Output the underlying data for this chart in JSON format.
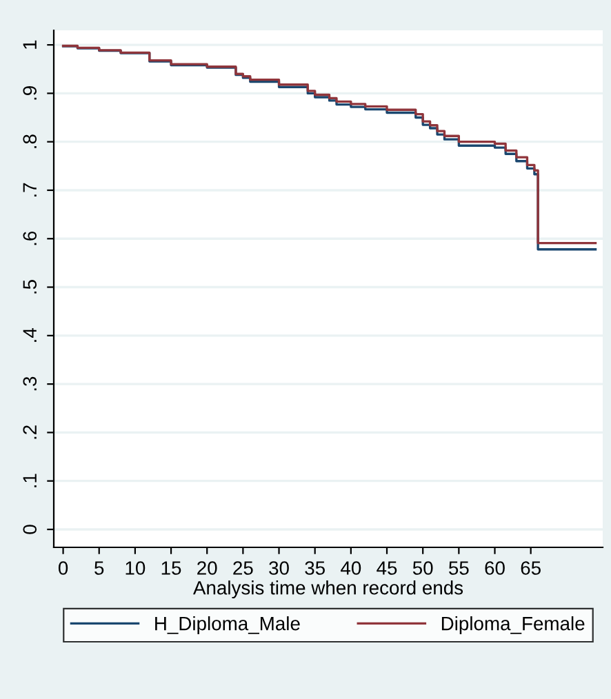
{
  "chart_data": {
    "type": "step",
    "xlabel": "Analysis time when record ends",
    "xlim": [
      -1.3,
      75
    ],
    "xticks": [
      0,
      5,
      10,
      15,
      20,
      25,
      30,
      35,
      40,
      45,
      50,
      55,
      60,
      65
    ],
    "ylim": [
      -0.037,
      1.03
    ],
    "yticks": [
      {
        "value": 0,
        "label": "0"
      },
      {
        "value": 0.1,
        "label": ".1"
      },
      {
        "value": 0.2,
        "label": ".2"
      },
      {
        "value": 0.3,
        "label": ".3"
      },
      {
        "value": 0.4,
        "label": ".4"
      },
      {
        "value": 0.5,
        "label": ".5"
      },
      {
        "value": 0.6,
        "label": ".6"
      },
      {
        "value": 0.7,
        "label": ".7"
      },
      {
        "value": 0.8,
        "label": ".8"
      },
      {
        "value": 0.9,
        "label": ".9"
      },
      {
        "value": 1,
        "label": "1"
      }
    ],
    "grid": "y",
    "legend": "bottom",
    "series": [
      {
        "name": "H_Diploma_Male",
        "color": "#1a476f",
        "x": [
          0,
          2,
          5,
          8,
          12,
          15,
          20,
          24,
          25,
          26,
          30,
          34,
          35,
          37,
          38,
          40,
          42,
          45,
          49,
          50,
          51,
          52,
          53,
          55,
          60,
          61.5,
          63,
          64.5,
          65.5,
          66,
          74
        ],
        "values": [
          0.997,
          0.993,
          0.988,
          0.983,
          0.966,
          0.958,
          0.953,
          0.938,
          0.932,
          0.924,
          0.913,
          0.9,
          0.892,
          0.885,
          0.877,
          0.872,
          0.867,
          0.86,
          0.85,
          0.835,
          0.828,
          0.815,
          0.805,
          0.792,
          0.788,
          0.775,
          0.76,
          0.745,
          0.733,
          0.578,
          0.578
        ]
      },
      {
        "name": "Diploma_Female",
        "color": "#90353b",
        "x": [
          0,
          2,
          5,
          8,
          12,
          15,
          20,
          24,
          25,
          26,
          30,
          34,
          35,
          37,
          38,
          40,
          42,
          45,
          49,
          50,
          51,
          52,
          53,
          55,
          60,
          61.5,
          63,
          64.5,
          65.5,
          66,
          74
        ],
        "values": [
          0.998,
          0.994,
          0.989,
          0.984,
          0.968,
          0.96,
          0.955,
          0.94,
          0.935,
          0.928,
          0.918,
          0.905,
          0.897,
          0.89,
          0.883,
          0.878,
          0.873,
          0.866,
          0.857,
          0.842,
          0.834,
          0.822,
          0.812,
          0.8,
          0.796,
          0.782,
          0.768,
          0.752,
          0.741,
          0.591,
          0.591
        ]
      }
    ]
  }
}
